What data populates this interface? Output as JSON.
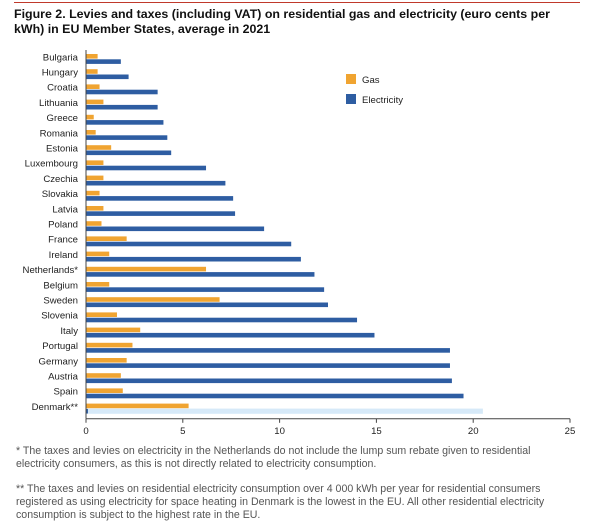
{
  "figure": {
    "title": "Figure 2. Levies and taxes (including VAT) on residential gas and electricity (euro cents per kWh) in EU Member States, average in 2021",
    "notes": [
      "* The taxes and levies on electricity in the Netherlands do not include the lump sum rebate given to residential electricity consumers, as this is not directly related to electricity consumption.",
      "** The taxes and levies on residential electricity consumption over 4 000 kWh per year for residential consumers registered as using electricity for space heating in Denmark is the lowest in the EU. All other residential electricity consumption is subject to the highest rate in the EU."
    ]
  },
  "chart_data": {
    "type": "bar",
    "orientation": "horizontal",
    "title": "Figure 2. Levies and taxes (including VAT) on residential gas and electricity (euro cents per kWh) in EU Member States, average in 2021",
    "xlabel": "",
    "ylabel": "",
    "xlim": [
      0,
      25
    ],
    "xticks": [
      0,
      5,
      10,
      15,
      20,
      25
    ],
    "grid": false,
    "legend": "top-right",
    "categories": [
      "Bulgaria",
      "Hungary",
      "Croatia",
      "Lithuania",
      "Greece",
      "Romania",
      "Estonia",
      "Luxembourg",
      "Czechia",
      "Slovakia",
      "Latvia",
      "Poland",
      "France",
      "Ireland",
      "Netherlands*",
      "Belgium",
      "Sweden",
      "Slovenia",
      "Italy",
      "Portugal",
      "Germany",
      "Austria",
      "Spain",
      "Denmark**"
    ],
    "series": [
      {
        "name": "Gas",
        "color": "#f0a431",
        "values": [
          0.6,
          0.6,
          0.7,
          0.9,
          0.4,
          0.5,
          1.3,
          0.9,
          0.9,
          0.7,
          0.9,
          0.8,
          2.1,
          1.2,
          6.2,
          1.2,
          6.9,
          1.6,
          2.8,
          2.4,
          2.1,
          1.8,
          1.9,
          5.3
        ]
      },
      {
        "name": "Electricity",
        "color": "#2e5da2",
        "values": [
          1.8,
          2.2,
          3.7,
          3.7,
          4.0,
          4.2,
          4.4,
          6.2,
          7.2,
          7.6,
          7.7,
          9.2,
          10.6,
          11.1,
          11.8,
          12.3,
          12.5,
          14.0,
          14.9,
          18.8,
          18.8,
          18.9,
          19.5,
          0.1
        ]
      }
    ],
    "highlight": {
      "category": "Denmark**",
      "value": 20.5,
      "color": "#d6e9f8"
    }
  }
}
